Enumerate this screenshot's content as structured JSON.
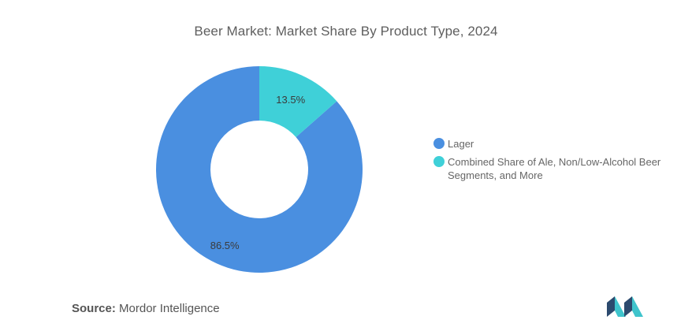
{
  "chart_data": {
    "type": "pie",
    "title": "Beer Market: Market Share By Product Type, 2024",
    "categories": [
      "Lager",
      "Combined Share of Ale, Non/Low-Alcohol Beer Segments, and More"
    ],
    "values": [
      86.5,
      13.5
    ],
    "data_labels": [
      "86.5%",
      "13.5%"
    ],
    "colors": [
      "#4a8fe0",
      "#3fd0d8"
    ],
    "legend_placement": "right",
    "donut": true
  },
  "source": {
    "label": "Source:",
    "text": "Mordor Intelligence"
  },
  "logo_icon": "mordor-intelligence-logo"
}
